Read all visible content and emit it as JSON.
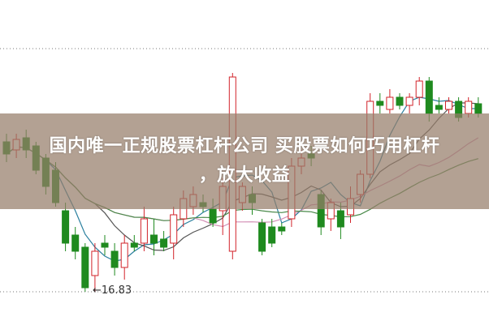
{
  "headline": {
    "line1": "国内唯一正规股票杠杆公司 买股票如何巧用杠杆",
    "line2": "，放大收益"
  },
  "chart_data": {
    "type": "candlestick",
    "title": "",
    "low_marker": "←16.83",
    "grid": "dotted horizontal lines",
    "colors": {
      "up": "#d2232a",
      "down": "#1f8a1f",
      "ma5": "#2a7f9e",
      "ma10": "#555555",
      "ma20": "#d38fb5",
      "ma30": "#4a8a4a",
      "banner": "#967d69"
    },
    "candles_ohlc": [
      [
        18.68,
        18.78,
        18.43,
        18.53
      ],
      [
        18.58,
        18.78,
        18.48,
        18.71
      ],
      [
        18.73,
        18.83,
        18.48,
        18.58
      ],
      [
        18.63,
        18.68,
        18.28,
        18.33
      ],
      [
        18.48,
        18.53,
        18.03,
        18.13
      ],
      [
        18.33,
        18.43,
        17.88,
        17.93
      ],
      [
        17.83,
        17.93,
        17.33,
        17.43
      ],
      [
        17.53,
        17.63,
        17.23,
        17.33
      ],
      [
        17.38,
        17.43,
        16.83,
        16.88
      ],
      [
        17.03,
        17.43,
        16.83,
        17.33
      ],
      [
        17.43,
        17.53,
        17.28,
        17.38
      ],
      [
        17.33,
        17.43,
        17.03,
        17.13
      ],
      [
        17.13,
        17.53,
        16.98,
        17.43
      ],
      [
        17.43,
        17.53,
        17.33,
        17.38
      ],
      [
        17.43,
        17.88,
        17.33,
        17.73
      ],
      [
        17.53,
        17.73,
        17.28,
        17.43
      ],
      [
        17.48,
        17.58,
        17.33,
        17.38
      ],
      [
        17.43,
        17.88,
        17.23,
        17.78
      ],
      [
        17.73,
        18.08,
        17.63,
        17.98
      ],
      [
        17.88,
        18.13,
        17.78,
        18.03
      ],
      [
        17.93,
        18.03,
        17.81,
        17.88
      ],
      [
        17.85,
        17.98,
        17.63,
        17.68
      ],
      [
        17.83,
        18.23,
        17.53,
        18.13
      ],
      [
        17.33,
        19.53,
        17.23,
        19.48
      ],
      [
        17.93,
        18.18,
        17.83,
        18.13
      ],
      [
        18.03,
        18.13,
        17.78,
        17.93
      ],
      [
        17.68,
        17.73,
        17.28,
        17.33
      ],
      [
        17.63,
        17.73,
        17.38,
        17.43
      ],
      [
        17.63,
        17.68,
        17.53,
        17.58
      ],
      [
        17.73,
        18.48,
        17.63,
        18.38
      ],
      [
        18.38,
        18.58,
        18.28,
        18.48
      ],
      [
        18.53,
        18.63,
        18.38,
        18.48
      ],
      [
        18.03,
        18.08,
        17.53,
        17.63
      ],
      [
        17.73,
        17.98,
        17.58,
        17.93
      ],
      [
        17.83,
        17.93,
        17.48,
        17.63
      ],
      [
        17.78,
        18.13,
        17.68,
        17.98
      ],
      [
        18.03,
        18.33,
        17.93,
        18.28
      ],
      [
        18.28,
        19.28,
        18.23,
        19.18
      ],
      [
        19.18,
        19.28,
        19.03,
        19.13
      ],
      [
        19.08,
        19.33,
        19.03,
        19.23
      ],
      [
        19.23,
        19.28,
        19.08,
        19.13
      ],
      [
        19.13,
        19.28,
        19.03,
        19.23
      ],
      [
        19.23,
        19.48,
        19.13,
        19.43
      ],
      [
        19.43,
        19.48,
        18.93,
        19.03
      ],
      [
        19.13,
        19.23,
        19.03,
        19.08
      ],
      [
        19.08,
        19.23,
        19.03,
        19.18
      ],
      [
        19.18,
        19.23,
        18.93,
        18.98
      ],
      [
        19.03,
        19.23,
        18.98,
        19.18
      ],
      [
        19.15,
        19.23,
        18.98,
        19.03
      ]
    ],
    "moving_averages": [
      5,
      10,
      20,
      30
    ]
  }
}
